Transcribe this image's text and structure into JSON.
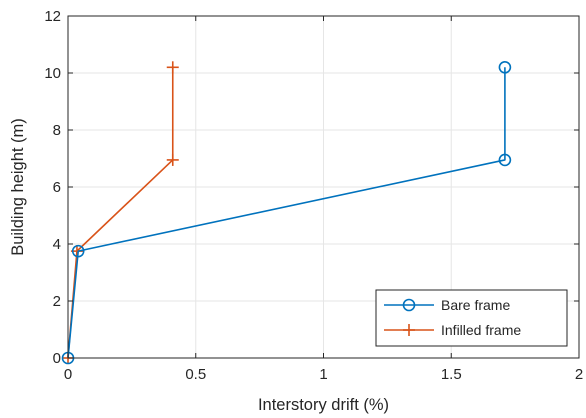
{
  "chart_data": {
    "type": "line",
    "title": "",
    "xlabel": "Interstory drift (%)",
    "ylabel": "Building height (m)",
    "xlim": [
      0,
      2
    ],
    "ylim": [
      0,
      12
    ],
    "xticks": [
      0,
      0.5,
      1,
      1.5,
      2
    ],
    "yticks": [
      0,
      2,
      4,
      6,
      8,
      10,
      12
    ],
    "xtick_labels": [
      "0",
      "0.5",
      "1",
      "1.5",
      "2"
    ],
    "ytick_labels": [
      "0",
      "2",
      "4",
      "6",
      "8",
      "10",
      "12"
    ],
    "grid": true,
    "legend_position": "bottom-right",
    "series": [
      {
        "name": "Bare frame",
        "color": "#0072BD",
        "marker": "circle",
        "x": [
          0,
          0.04,
          1.71,
          1.71
        ],
        "y": [
          0,
          3.75,
          6.95,
          10.2
        ]
      },
      {
        "name": "Infilled frame",
        "color": "#D95319",
        "marker": "plus",
        "x": [
          0,
          0.035,
          0.41,
          0.41
        ],
        "y": [
          0,
          3.75,
          6.95,
          10.2
        ]
      }
    ]
  }
}
